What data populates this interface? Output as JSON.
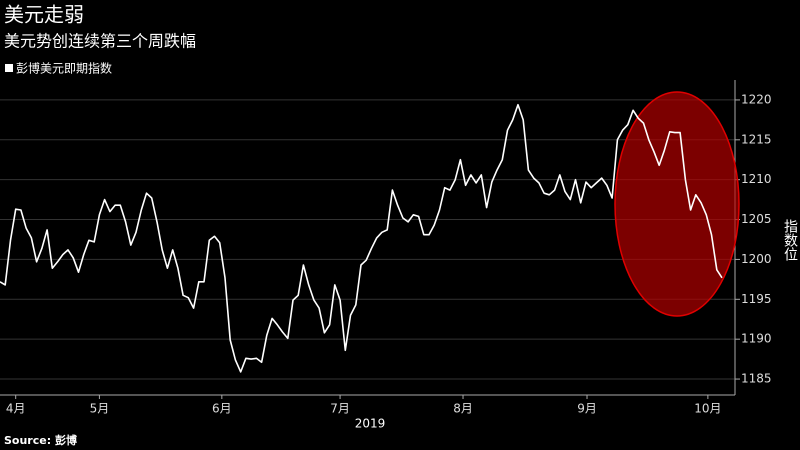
{
  "chart_data": {
    "type": "line",
    "title": "美元走弱",
    "subtitle": "美元势创连续第三个周跌幅",
    "ylabel": "指数位",
    "x_year": "2019",
    "source": "Source: 彭博",
    "ylim": [
      1183,
      1222.5
    ],
    "yticks": [
      1185,
      1190,
      1195,
      1200,
      1205,
      1210,
      1215,
      1220
    ],
    "xticks": [
      {
        "value": 3,
        "label": "4月"
      },
      {
        "value": 19,
        "label": "5月"
      },
      {
        "value": 42.4,
        "label": "6月"
      },
      {
        "value": 65,
        "label": "7月"
      },
      {
        "value": 88.5,
        "label": "8月"
      },
      {
        "value": 112.2,
        "label": "9月"
      },
      {
        "value": 135.3,
        "label": "10月"
      }
    ],
    "grid": true,
    "series": [
      {
        "name": "彭博美元即期指数",
        "color": "#ffffff",
        "values": [
          1197.2,
          1196.8,
          1202.4,
          1206.3,
          1206.2,
          1203.9,
          1202.7,
          1199.7,
          1201.4,
          1203.7,
          1198.9,
          1199.7,
          1200.6,
          1201.2,
          1200.2,
          1198.4,
          1200.6,
          1202.4,
          1202.2,
          1205.6,
          1207.5,
          1206.0,
          1206.8,
          1206.8,
          1204.7,
          1201.8,
          1203.4,
          1206.2,
          1208.3,
          1207.7,
          1204.7,
          1201.2,
          1198.9,
          1201.2,
          1198.9,
          1195.5,
          1195.2,
          1193.9,
          1197.2,
          1197.2,
          1202.4,
          1202.9,
          1202.1,
          1197.7,
          1189.9,
          1187.4,
          1185.9,
          1187.6,
          1187.5,
          1187.6,
          1187.1,
          1190.5,
          1192.6,
          1191.8,
          1190.9,
          1190.1,
          1194.9,
          1195.5,
          1199.3,
          1196.8,
          1194.9,
          1193.9,
          1190.8,
          1191.8,
          1196.8,
          1194.9,
          1188.6,
          1193.0,
          1194.3,
          1199.3,
          1199.9,
          1201.4,
          1202.7,
          1203.4,
          1203.7,
          1208.7,
          1206.8,
          1205.2,
          1204.7,
          1205.6,
          1205.4,
          1203.1,
          1203.1,
          1204.3,
          1206.2,
          1209.0,
          1208.7,
          1210.0,
          1212.5,
          1209.3,
          1210.6,
          1209.6,
          1210.6,
          1206.5,
          1209.7,
          1211.2,
          1212.5,
          1216.2,
          1217.5,
          1219.4,
          1217.5,
          1211.2,
          1210.2,
          1209.6,
          1208.3,
          1208.1,
          1208.7,
          1210.6,
          1208.5,
          1207.5,
          1210.0,
          1207.1,
          1209.7,
          1209.0,
          1209.6,
          1210.2,
          1209.3,
          1207.7,
          1215.0,
          1216.2,
          1216.9,
          1218.7,
          1217.7,
          1217.1,
          1215.0,
          1213.5,
          1211.8,
          1213.7,
          1216.0,
          1215.9,
          1215.9,
          1210.0,
          1206.2,
          1208.1,
          1207.1,
          1205.6,
          1203.1,
          1198.7,
          1197.7
        ]
      }
    ]
  }
}
